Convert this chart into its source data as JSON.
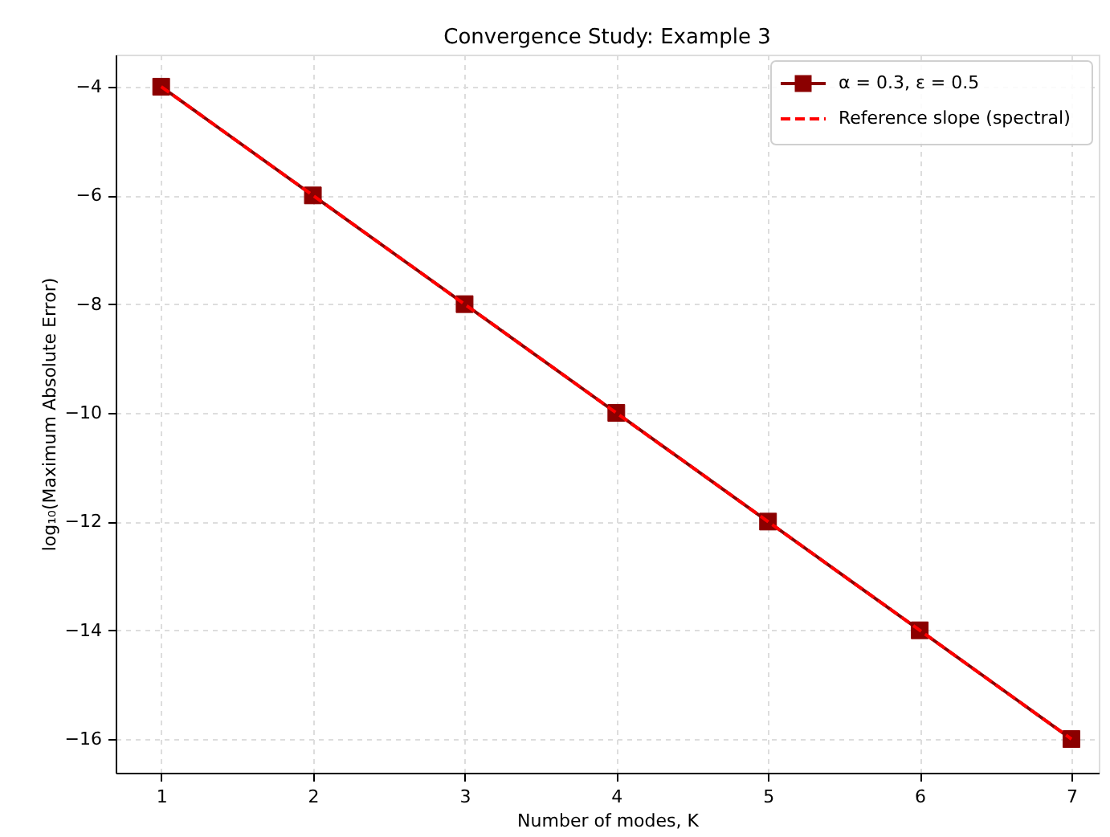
{
  "chart_data": {
    "type": "line",
    "title": "Convergence Study: Example 3",
    "xlabel": "Number of modes, K",
    "ylabel": "log₁₀(Maximum Absolute Error)",
    "x": [
      1,
      2,
      3,
      4,
      5,
      6,
      7
    ],
    "series": [
      {
        "name": "α = 0.3, ε = 0.5",
        "color": "#8b0000",
        "values": [
          -4,
          -6,
          -8,
          -10,
          -12,
          -14,
          -16
        ],
        "marker": "square",
        "line_style": "solid"
      },
      {
        "name": "Reference slope (spectral)",
        "color": "#ff0000",
        "values": [
          -4,
          -6,
          -8,
          -10,
          -12,
          -14,
          -16
        ],
        "marker": "none",
        "line_style": "dashed"
      }
    ],
    "xlim": [
      0.7,
      7.18
    ],
    "xticks": [
      1,
      2,
      3,
      4,
      5,
      6,
      7
    ],
    "ylim": [
      -16.62,
      -3.41
    ],
    "yticks": [
      -16,
      -14,
      -12,
      -10,
      -8,
      -6,
      -4
    ],
    "grid": true,
    "legend": "top right"
  }
}
